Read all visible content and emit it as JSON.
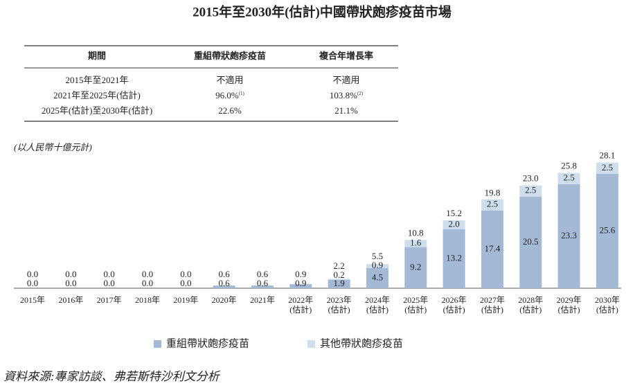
{
  "title": "2015年至2030年(估計)中國帶狀皰疹疫苗市場",
  "table": {
    "header": [
      "期間",
      "重組帶狀皰疹疫苗",
      "複合年增長率"
    ],
    "rows": [
      [
        "2015年至2021年",
        "不適用",
        "不適用"
      ],
      [
        "2021年至2025年(估計)",
        {
          "text": "96.0%",
          "note": "(1)"
        },
        {
          "text": "103.8%",
          "note": "(2)"
        }
      ],
      [
        "2025年(估計)至2030年(估計)",
        "22.6%",
        "21.1%"
      ]
    ]
  },
  "chart_data": {
    "type": "stacked_bar",
    "unit_label": "(以人民幣十億元計)",
    "categories": [
      [
        "2015年"
      ],
      [
        "2016年"
      ],
      [
        "2017年"
      ],
      [
        "2018年"
      ],
      [
        "2019年"
      ],
      [
        "2020年"
      ],
      [
        "2021年"
      ],
      [
        "2022年",
        "(估計)"
      ],
      [
        "2023年",
        "(估計)"
      ],
      [
        "2024年",
        "(估計)"
      ],
      [
        "2025年",
        "(估計)"
      ],
      [
        "2026年",
        "(估計)"
      ],
      [
        "2027年",
        "(估計)"
      ],
      [
        "2028年",
        "(估計)"
      ],
      [
        "2029年",
        "(估計)"
      ],
      [
        "2030年",
        "(估計)"
      ]
    ],
    "series": [
      {
        "name": "重組帶狀皰疹疫苗",
        "color": "#a3b9d5",
        "values": [
          0,
          0,
          0,
          0,
          0,
          0.6,
          0.6,
          0.9,
          1.9,
          4.5,
          9.2,
          13.2,
          17.4,
          20.5,
          23.3,
          25.6
        ],
        "value_labels": [
          "0.0",
          "0.0",
          "0.0",
          "0.0",
          "0.0",
          "0.6",
          "0.6",
          "0.9",
          "1.9",
          "4.5",
          "9.2",
          "13.2",
          "17.4",
          "20.5",
          "23.3",
          "25.6"
        ]
      },
      {
        "name": "其他帶狀皰疹疫苗",
        "color": "#cfdeed",
        "values": [
          0,
          0,
          0,
          0,
          0,
          0,
          0,
          0,
          0.2,
          0.9,
          1.6,
          2.0,
          2.5,
          2.5,
          2.5,
          2.5
        ],
        "value_labels": [
          null,
          null,
          null,
          null,
          null,
          null,
          null,
          null,
          "0.2",
          "0.9",
          "1.6",
          "2.0",
          "2.5",
          "2.5",
          "2.5",
          "2.5"
        ]
      }
    ],
    "totals": [
      0,
      0,
      0,
      0,
      0,
      0.6,
      0.6,
      0.9,
      2.2,
      5.5,
      10.8,
      15.2,
      19.8,
      23.0,
      25.8,
      28.1
    ],
    "total_labels": [
      "0.0",
      "0.0",
      "0.0",
      "0.0",
      "0.0",
      "0.6",
      "0.6",
      "0.9",
      "2.2",
      "5.5",
      "10.8",
      "15.2",
      "19.8",
      "23.0",
      "25.8",
      "28.1"
    ]
  },
  "source": "資料來源:專家訪談、弗若斯特沙利文分析"
}
